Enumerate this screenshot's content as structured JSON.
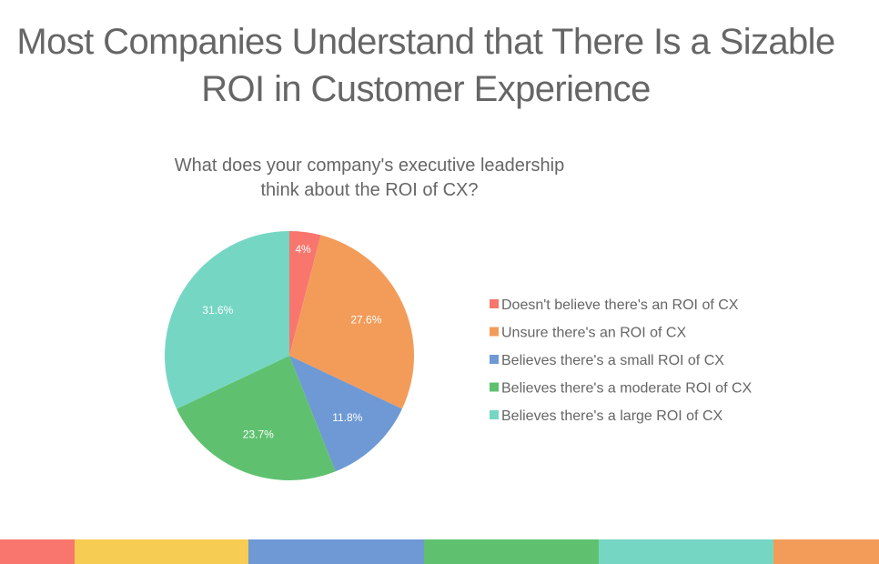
{
  "slide": {
    "title_line1": "Most Companies Understand that There Is a Sizable",
    "title_line2": "ROI in Customer Experience"
  },
  "chart_data": {
    "type": "pie",
    "title_lines": [
      "What does your company's executive leadership",
      "think about the ROI of CX?"
    ],
    "labels": [
      "Doesn't believe there's an ROI of CX",
      "Unsure there's an ROI of CX",
      "Believes there's a small ROI of CX",
      "Believes there's a moderate ROI of CX",
      "Believes there's a large ROI of CX"
    ],
    "values": [
      4,
      27.6,
      11.8,
      23.7,
      31.6
    ],
    "data_labels": [
      "4%",
      "27.6%",
      "11.8%",
      "23.7%",
      "31.6%"
    ],
    "colors": [
      "#f8766d",
      "#f39c5a",
      "#6e99d4",
      "#5fc16f",
      "#76d6c4"
    ],
    "legend_position": "right"
  },
  "bottom_bar_colors": [
    "#f8766d",
    "#f6cd52",
    "#6e99d4",
    "#5fc16f",
    "#76d6c4",
    "#f39c5a"
  ]
}
